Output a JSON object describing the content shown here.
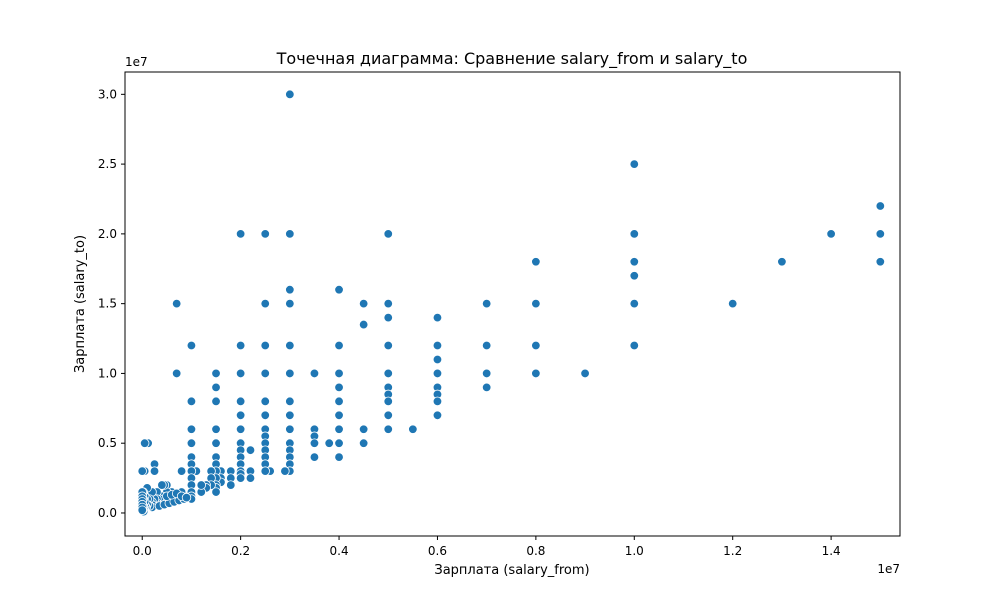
{
  "chart_data": {
    "type": "scatter",
    "title": "Точечная диаграмма: Сравнение salary_from и salary_to",
    "xlabel": "Зарплата (salary_from)",
    "ylabel": "Зарплата (salary_to)",
    "x_multiplier_label": "1e7",
    "y_multiplier_label": "1e7",
    "xlim": [
      -0.035,
      1.54
    ],
    "ylim": [
      -0.165,
      3.16
    ],
    "x_ticks": [
      0.0,
      0.2,
      0.4,
      0.6,
      0.8,
      1.0,
      1.2,
      1.4
    ],
    "x_tick_labels": [
      "0.0",
      "0.2",
      "0.4",
      "0.6",
      "0.8",
      "1.0",
      "1.2",
      "1.4"
    ],
    "y_ticks": [
      0.0,
      0.5,
      1.0,
      1.5,
      2.0,
      2.5,
      3.0
    ],
    "y_tick_labels": [
      "0.0",
      "0.5",
      "1.0",
      "1.5",
      "2.0",
      "2.5",
      "3.0"
    ],
    "grid": false,
    "marker_color": "#1f77b4",
    "points": [
      [
        0.3,
        3.0
      ],
      [
        1.0,
        2.5
      ],
      [
        1.5,
        2.2
      ],
      [
        1.5,
        2.0
      ],
      [
        1.5,
        1.8
      ],
      [
        1.4,
        2.0
      ],
      [
        1.3,
        1.8
      ],
      [
        1.2,
        1.5
      ],
      [
        1.0,
        2.0
      ],
      [
        1.0,
        1.8
      ],
      [
        1.0,
        1.7
      ],
      [
        1.0,
        1.5
      ],
      [
        1.0,
        1.2
      ],
      [
        0.9,
        1.0
      ],
      [
        0.8,
        1.8
      ],
      [
        0.8,
        1.5
      ],
      [
        0.8,
        1.2
      ],
      [
        0.8,
        1.0
      ],
      [
        0.7,
        1.5
      ],
      [
        0.7,
        1.2
      ],
      [
        0.7,
        1.0
      ],
      [
        0.7,
        0.9
      ],
      [
        0.6,
        1.4
      ],
      [
        0.6,
        1.2
      ],
      [
        0.6,
        1.1
      ],
      [
        0.6,
        1.0
      ],
      [
        0.6,
        0.9
      ],
      [
        0.6,
        0.85
      ],
      [
        0.6,
        0.8
      ],
      [
        0.6,
        0.7
      ],
      [
        0.55,
        0.6
      ],
      [
        0.5,
        2.0
      ],
      [
        0.5,
        1.5
      ],
      [
        0.5,
        1.4
      ],
      [
        0.5,
        1.2
      ],
      [
        0.5,
        1.0
      ],
      [
        0.5,
        0.9
      ],
      [
        0.5,
        0.85
      ],
      [
        0.5,
        0.8
      ],
      [
        0.5,
        0.7
      ],
      [
        0.5,
        0.6
      ],
      [
        0.45,
        1.5
      ],
      [
        0.45,
        1.35
      ],
      [
        0.45,
        0.6
      ],
      [
        0.45,
        0.5
      ],
      [
        0.4,
        1.6
      ],
      [
        0.4,
        1.2
      ],
      [
        0.4,
        1.0
      ],
      [
        0.4,
        0.9
      ],
      [
        0.4,
        0.8
      ],
      [
        0.4,
        0.7
      ],
      [
        0.4,
        0.6
      ],
      [
        0.4,
        0.5
      ],
      [
        0.4,
        0.4
      ],
      [
        0.38,
        0.5
      ],
      [
        0.35,
        1.0
      ],
      [
        0.35,
        0.6
      ],
      [
        0.35,
        0.55
      ],
      [
        0.35,
        0.5
      ],
      [
        0.35,
        0.4
      ],
      [
        0.3,
        2.0
      ],
      [
        0.3,
        1.6
      ],
      [
        0.3,
        1.5
      ],
      [
        0.3,
        1.2
      ],
      [
        0.3,
        1.0
      ],
      [
        0.3,
        0.8
      ],
      [
        0.3,
        0.7
      ],
      [
        0.3,
        0.6
      ],
      [
        0.3,
        0.5
      ],
      [
        0.3,
        0.45
      ],
      [
        0.3,
        0.4
      ],
      [
        0.3,
        0.35
      ],
      [
        0.3,
        0.3
      ],
      [
        0.29,
        0.3
      ],
      [
        0.26,
        0.3
      ],
      [
        0.25,
        2.0
      ],
      [
        0.25,
        1.5
      ],
      [
        0.25,
        1.2
      ],
      [
        0.25,
        1.0
      ],
      [
        0.25,
        0.8
      ],
      [
        0.25,
        0.7
      ],
      [
        0.25,
        0.6
      ],
      [
        0.25,
        0.55
      ],
      [
        0.25,
        0.5
      ],
      [
        0.25,
        0.45
      ],
      [
        0.25,
        0.4
      ],
      [
        0.25,
        0.35
      ],
      [
        0.25,
        0.3
      ],
      [
        0.22,
        0.45
      ],
      [
        0.22,
        0.3
      ],
      [
        0.22,
        0.25
      ],
      [
        0.2,
        2.0
      ],
      [
        0.2,
        1.2
      ],
      [
        0.2,
        1.0
      ],
      [
        0.2,
        0.8
      ],
      [
        0.2,
        0.7
      ],
      [
        0.2,
        0.6
      ],
      [
        0.2,
        0.5
      ],
      [
        0.2,
        0.45
      ],
      [
        0.2,
        0.4
      ],
      [
        0.2,
        0.35
      ],
      [
        0.2,
        0.3
      ],
      [
        0.2,
        0.28
      ],
      [
        0.2,
        0.25
      ],
      [
        0.18,
        0.3
      ],
      [
        0.18,
        0.25
      ],
      [
        0.18,
        0.2
      ],
      [
        0.16,
        0.3
      ],
      [
        0.16,
        0.25
      ],
      [
        0.16,
        0.22
      ],
      [
        0.15,
        1.0
      ],
      [
        0.15,
        0.9
      ],
      [
        0.15,
        0.8
      ],
      [
        0.15,
        0.6
      ],
      [
        0.15,
        0.5
      ],
      [
        0.15,
        0.4
      ],
      [
        0.15,
        0.35
      ],
      [
        0.15,
        0.3
      ],
      [
        0.15,
        0.25
      ],
      [
        0.15,
        0.2
      ],
      [
        0.15,
        0.18
      ],
      [
        0.15,
        0.15
      ],
      [
        0.14,
        0.3
      ],
      [
        0.14,
        0.25
      ],
      [
        0.14,
        0.2
      ],
      [
        0.13,
        0.2
      ],
      [
        0.13,
        0.18
      ],
      [
        0.12,
        0.15
      ],
      [
        0.12,
        0.2
      ],
      [
        0.11,
        0.3
      ],
      [
        0.1,
        1.2
      ],
      [
        0.1,
        0.8
      ],
      [
        0.1,
        0.6
      ],
      [
        0.1,
        0.5
      ],
      [
        0.1,
        0.4
      ],
      [
        0.1,
        0.35
      ],
      [
        0.1,
        0.3
      ],
      [
        0.1,
        0.25
      ],
      [
        0.1,
        0.2
      ],
      [
        0.1,
        0.15
      ],
      [
        0.1,
        0.12
      ],
      [
        0.1,
        0.1
      ],
      [
        0.08,
        0.3
      ],
      [
        0.08,
        0.15
      ],
      [
        0.08,
        0.1
      ],
      [
        0.07,
        1.5
      ],
      [
        0.07,
        1.0
      ],
      [
        0.06,
        0.1
      ],
      [
        0.06,
        0.15
      ],
      [
        0.05,
        0.2
      ],
      [
        0.05,
        0.15
      ],
      [
        0.05,
        0.1
      ],
      [
        0.05,
        0.08
      ],
      [
        0.045,
        0.2
      ],
      [
        0.04,
        0.2
      ],
      [
        0.04,
        0.12
      ],
      [
        0.04,
        0.08
      ],
      [
        0.035,
        0.1
      ],
      [
        0.03,
        0.15
      ],
      [
        0.03,
        0.1
      ],
      [
        0.03,
        0.07
      ],
      [
        0.025,
        0.35
      ],
      [
        0.025,
        0.3
      ],
      [
        0.025,
        0.1
      ],
      [
        0.02,
        0.15
      ],
      [
        0.02,
        0.08
      ],
      [
        0.02,
        0.06
      ],
      [
        0.02,
        0.04
      ],
      [
        0.015,
        0.1
      ],
      [
        0.015,
        0.05
      ],
      [
        0.012,
        0.5
      ],
      [
        0.01,
        0.18
      ],
      [
        0.01,
        0.1
      ],
      [
        0.01,
        0.06
      ],
      [
        0.008,
        0.04
      ],
      [
        0.006,
        0.05
      ],
      [
        0.005,
        0.5
      ],
      [
        0.005,
        0.3
      ],
      [
        0.005,
        0.12
      ],
      [
        0.005,
        0.08
      ],
      [
        0.005,
        0.03
      ],
      [
        0.004,
        0.02
      ],
      [
        0.003,
        0.01
      ],
      [
        0.002,
        0.15
      ],
      [
        0.002,
        0.1
      ],
      [
        0.002,
        0.05
      ],
      [
        0.001,
        0.02
      ],
      [
        0.0,
        0.3
      ],
      [
        0.0,
        0.15
      ],
      [
        0.0,
        0.12
      ],
      [
        0.0,
        0.1
      ],
      [
        0.0,
        0.08
      ],
      [
        0.0,
        0.06
      ],
      [
        0.0,
        0.04
      ],
      [
        0.0,
        0.02
      ],
      [
        0.035,
        0.05
      ],
      [
        0.045,
        0.06
      ],
      [
        0.055,
        0.07
      ],
      [
        0.065,
        0.08
      ],
      [
        0.075,
        0.09
      ],
      [
        0.085,
        0.1
      ],
      [
        0.05,
        0.12
      ],
      [
        0.06,
        0.13
      ],
      [
        0.07,
        0.14
      ],
      [
        0.08,
        0.12
      ],
      [
        0.09,
        0.11
      ]
    ]
  }
}
